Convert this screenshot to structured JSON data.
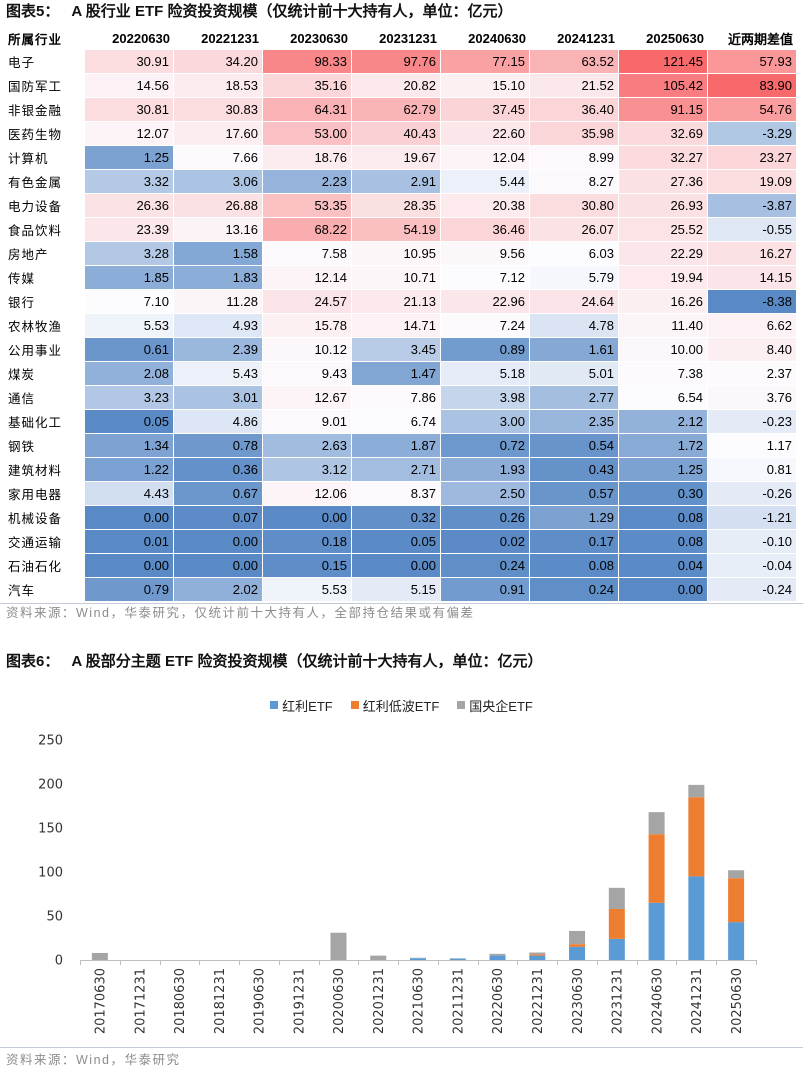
{
  "chart_data": [
    {
      "type": "heatmap",
      "label": "图表5：",
      "title": "A 股行业 ETF 险资投资规模（仅统计前十大持有人，单位：亿元）",
      "columns": [
        "所属行业",
        "20220630",
        "20221231",
        "20230630",
        "20231231",
        "20240630",
        "20241231",
        "20250630",
        "近两期差值"
      ],
      "rows": [
        {
          "industry": "电子",
          "values": [
            30.91,
            34.2,
            98.33,
            97.76,
            77.15,
            63.52,
            121.45
          ],
          "diff": 57.93
        },
        {
          "industry": "国防军工",
          "values": [
            14.56,
            18.53,
            35.16,
            20.82,
            15.1,
            21.52,
            105.42
          ],
          "diff": 83.9
        },
        {
          "industry": "非银金融",
          "values": [
            30.81,
            30.83,
            64.31,
            62.79,
            37.45,
            36.4,
            91.15
          ],
          "diff": 54.76
        },
        {
          "industry": "医药生物",
          "values": [
            12.07,
            17.6,
            53.0,
            40.43,
            22.6,
            35.98,
            32.69
          ],
          "diff": -3.29
        },
        {
          "industry": "计算机",
          "values": [
            1.25,
            7.66,
            18.76,
            19.67,
            12.04,
            8.99,
            32.27
          ],
          "diff": 23.27
        },
        {
          "industry": "有色金属",
          "values": [
            3.32,
            3.06,
            2.23,
            2.91,
            5.44,
            8.27,
            27.36
          ],
          "diff": 19.09
        },
        {
          "industry": "电力设备",
          "values": [
            26.36,
            26.88,
            53.35,
            28.35,
            20.38,
            30.8,
            26.93
          ],
          "diff": -3.87
        },
        {
          "industry": "食品饮料",
          "values": [
            23.39,
            13.16,
            68.22,
            54.19,
            36.46,
            26.07,
            25.52
          ],
          "diff": -0.55
        },
        {
          "industry": "房地产",
          "values": [
            3.28,
            1.58,
            7.58,
            10.95,
            9.56,
            6.03,
            22.29
          ],
          "diff": 16.27
        },
        {
          "industry": "传媒",
          "values": [
            1.85,
            1.83,
            12.14,
            10.71,
            7.12,
            5.79,
            19.94
          ],
          "diff": 14.15
        },
        {
          "industry": "银行",
          "values": [
            7.1,
            11.28,
            24.57,
            21.13,
            22.96,
            24.64,
            16.26
          ],
          "diff": -8.38
        },
        {
          "industry": "农林牧渔",
          "values": [
            5.53,
            4.93,
            15.78,
            14.71,
            7.24,
            4.78,
            11.4
          ],
          "diff": 6.62
        },
        {
          "industry": "公用事业",
          "values": [
            0.61,
            2.39,
            10.12,
            3.45,
            0.89,
            1.61,
            10.0
          ],
          "diff": 8.4
        },
        {
          "industry": "煤炭",
          "values": [
            2.08,
            5.43,
            9.43,
            1.47,
            5.18,
            5.01,
            7.38
          ],
          "diff": 2.37
        },
        {
          "industry": "通信",
          "values": [
            3.23,
            3.01,
            12.67,
            7.86,
            3.98,
            2.77,
            6.54
          ],
          "diff": 3.76
        },
        {
          "industry": "基础化工",
          "values": [
            0.05,
            4.86,
            9.01,
            6.74,
            3.0,
            2.35,
            2.12
          ],
          "diff": -0.23
        },
        {
          "industry": "钢铁",
          "values": [
            1.34,
            0.78,
            2.63,
            1.87,
            0.72,
            0.54,
            1.72
          ],
          "diff": 1.17
        },
        {
          "industry": "建筑材料",
          "values": [
            1.22,
            0.36,
            3.12,
            2.71,
            1.93,
            0.43,
            1.25
          ],
          "diff": 0.81
        },
        {
          "industry": "家用电器",
          "values": [
            4.43,
            0.67,
            12.06,
            8.37,
            2.5,
            0.57,
            0.3
          ],
          "diff": -0.26
        },
        {
          "industry": "机械设备",
          "values": [
            0.0,
            0.07,
            0.0,
            0.32,
            0.26,
            1.29,
            0.08
          ],
          "diff": -1.21
        },
        {
          "industry": "交通运输",
          "values": [
            0.01,
            0.0,
            0.18,
            0.05,
            0.02,
            0.17,
            0.08
          ],
          "diff": -0.1
        },
        {
          "industry": "石油石化",
          "values": [
            0.0,
            0.0,
            0.15,
            0.0,
            0.24,
            0.08,
            0.04
          ],
          "diff": -0.04
        },
        {
          "industry": "汽车",
          "values": [
            0.79,
            2.02,
            5.53,
            5.15,
            0.91,
            0.24,
            0.0
          ],
          "diff": -0.24
        }
      ],
      "color_scale": {
        "low": "#5A8AC6",
        "mid": "#FCFCFF",
        "high": "#F8696B"
      },
      "source": "资料来源：Wind，华泰研究，仅统计前十大持有人，全部持仓结果或有偏差"
    },
    {
      "type": "bar",
      "stacked": true,
      "label": "图表6：",
      "title": "A 股部分主题 ETF 险资投资规模（仅统计前十大持有人，单位：亿元）",
      "categories": [
        "20170630",
        "20171231",
        "20180630",
        "20181231",
        "20190630",
        "20191231",
        "20200630",
        "20201231",
        "20210630",
        "20211231",
        "20220630",
        "20221231",
        "20230630",
        "20231231",
        "20240630",
        "20241231",
        "20250630"
      ],
      "series": [
        {
          "name": "红利ETF",
          "color": "#5B9BD5",
          "values": [
            0,
            0,
            0,
            0,
            0,
            0,
            0,
            0,
            2,
            1.5,
            5,
            5,
            15,
            24,
            65,
            95,
            43
          ]
        },
        {
          "name": "红利低波ETF",
          "color": "#ED7D31",
          "values": [
            0,
            0,
            0,
            0,
            0,
            0,
            0,
            0,
            0,
            0,
            0,
            1.5,
            3,
            34,
            78,
            90,
            50
          ]
        },
        {
          "name": "国央企ETF",
          "color": "#A5A5A5",
          "values": [
            8,
            0,
            0,
            0,
            0,
            0,
            31,
            5,
            0.5,
            0.5,
            2,
            2,
            15,
            24,
            25,
            14,
            9
          ]
        }
      ],
      "xlabel": "",
      "ylabel": "",
      "ylim": [
        0,
        250
      ],
      "yticks": [
        0,
        50,
        100,
        150,
        200,
        250
      ],
      "legend": "top-center",
      "source": "资料来源：Wind，华泰研究"
    }
  ]
}
